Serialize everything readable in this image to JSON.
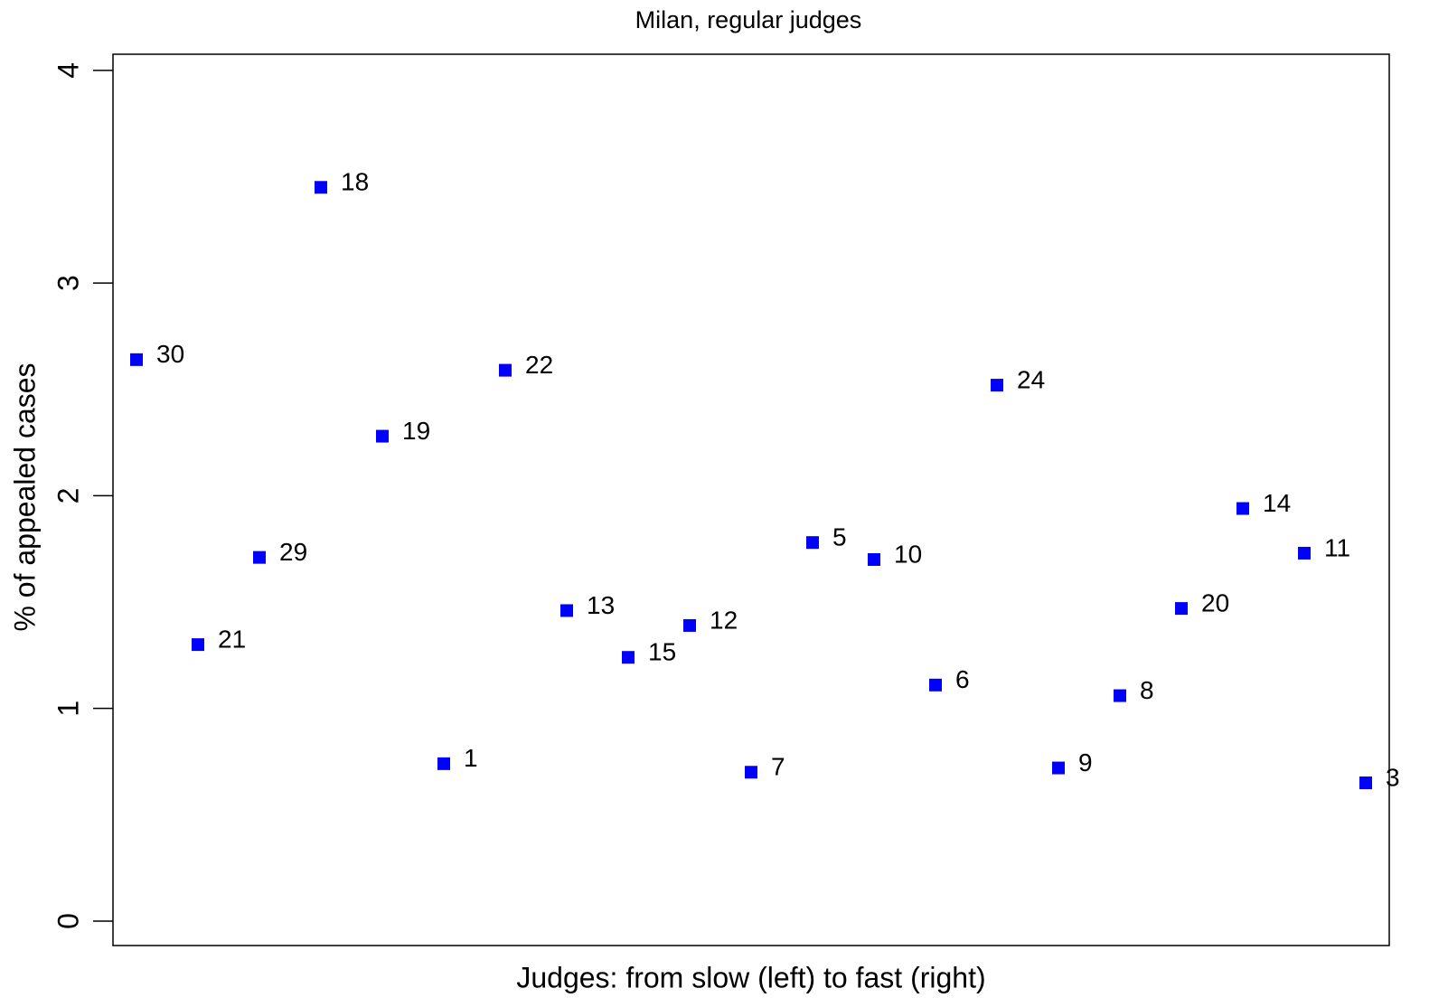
{
  "chart_data": {
    "type": "scatter",
    "title": "Milan, regular judges",
    "x_label": "Judges: from slow (left) to fast (right)",
    "y_label": "% of appealed cases",
    "categories": [
      "30",
      "21",
      "29",
      "18",
      "19",
      "1",
      "22",
      "13",
      "15",
      "12",
      "7",
      "5",
      "10",
      "6",
      "24",
      "9",
      "8",
      "20",
      "14",
      "11",
      "3"
    ],
    "values": [
      2.64,
      1.3,
      1.71,
      3.45,
      2.28,
      0.74,
      2.59,
      1.46,
      1.24,
      1.39,
      0.7,
      1.78,
      1.7,
      1.11,
      2.52,
      0.72,
      1.06,
      1.47,
      1.94,
      1.73,
      0.65
    ],
    "color": "#0000ff",
    "ylim": [
      -0.115,
      4.076
    ],
    "yticks": [
      0,
      1,
      2,
      3,
      4
    ]
  }
}
